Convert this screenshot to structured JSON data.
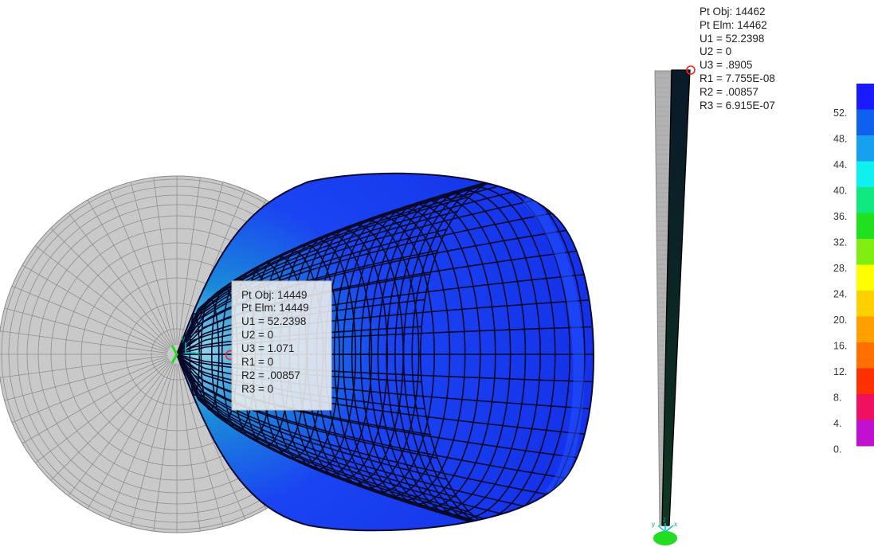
{
  "point_info_1": {
    "lines": [
      "Pt Obj: 14449",
      "Pt Elm: 14449",
      "U1 =  52.2398",
      "U2 =  0",
      "U3 =  1.071",
      "R1 =  0",
      "R2 =  .00857",
      "R3 =  0"
    ]
  },
  "point_info_2": {
    "lines": [
      "Pt Obj: 14462",
      "Pt Elm: 14462",
      "U1 =  52.2398",
      "U2 =  0",
      "U3 =  .8905",
      "R1 =  7.755E-08",
      "R2 =  .00857",
      "R3 =  6.915E-07"
    ]
  },
  "legend": {
    "labels": [
      "52.",
      "48.",
      "44.",
      "40.",
      "36.",
      "32.",
      "28.",
      "24.",
      "20.",
      "16.",
      "12.",
      "8.",
      "4.",
      "0."
    ],
    "colors": [
      "#1a1aff",
      "#1060f0",
      "#18a0f0",
      "#10f0f0",
      "#10e880",
      "#20e020",
      "#80ee10",
      "#ffff00",
      "#ffd000",
      "#ffa000",
      "#ff7000",
      "#ff3000",
      "#f01060",
      "#c010d0"
    ]
  },
  "colors": {
    "undeformed": "#9a9a9a",
    "deformed_dark": "#1226d8",
    "deformed_mid": "#1a3df5",
    "marker": "#ff2020",
    "support": "#22dd22",
    "axis": "#00c8c8"
  },
  "axes": {
    "front_view": [
      "y",
      "x"
    ],
    "side_view": [
      "z",
      "y",
      "x"
    ]
  }
}
